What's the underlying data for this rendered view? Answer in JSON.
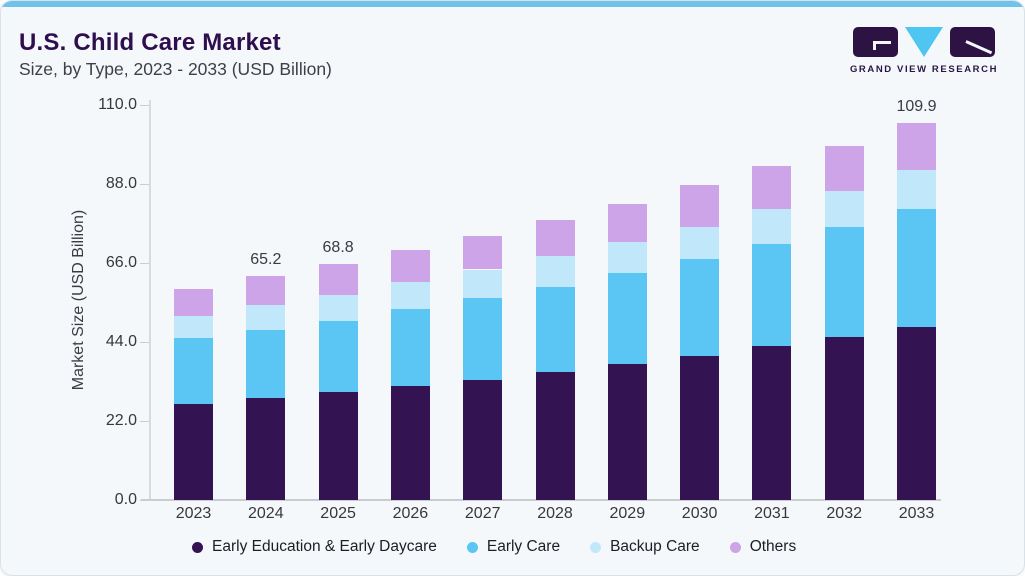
{
  "header": {
    "title": "U.S. Child Care Market",
    "subtitle": "Size, by Type, 2023 - 2033 (USD Billion)"
  },
  "logo": {
    "brand": "GRAND VIEW RESEARCH",
    "purple": "#2d1343",
    "cyan": "#4fc6f1"
  },
  "colors": {
    "background": "#f4f8fb",
    "accent_bar": "#6fc3eb",
    "title_text": "#2f0e4e",
    "axis_line": "#c9cdd2"
  },
  "chart_data": {
    "type": "bar",
    "stacked": true,
    "title": "U.S. Child Care Market Size, by Type, 2023 - 2033 (USD Billion)",
    "categories": [
      "2023",
      "2024",
      "2025",
      "2026",
      "2027",
      "2028",
      "2029",
      "2030",
      "2031",
      "2032",
      "2033"
    ],
    "series": [
      {
        "name": "Early Education & Early Daycare",
        "color": "#341352",
        "values": [
          28.0,
          29.6,
          31.5,
          33.3,
          35.0,
          37.2,
          39.6,
          42.0,
          44.8,
          47.4,
          50.5
        ]
      },
      {
        "name": "Early Care",
        "color": "#5bc6f3",
        "values": [
          19.2,
          20.1,
          20.8,
          22.4,
          23.9,
          25.0,
          26.6,
          28.2,
          29.9,
          32.1,
          34.2
        ]
      },
      {
        "name": "Backup Care",
        "color": "#c1e7fa",
        "values": [
          6.3,
          7.2,
          7.5,
          7.8,
          8.3,
          8.8,
          9.1,
          9.5,
          10.2,
          10.7,
          11.6
        ]
      },
      {
        "name": "Others",
        "color": "#cda4e8",
        "values": [
          8.0,
          8.3,
          9.0,
          9.3,
          9.7,
          10.7,
          11.0,
          12.1,
          12.4,
          13.1,
          13.6
        ]
      }
    ],
    "totals": [
      61.5,
      65.2,
      68.8,
      72.8,
      76.9,
      81.7,
      86.3,
      91.8,
      97.3,
      103.3,
      109.9
    ],
    "data_labels": {
      "2024": "65.2",
      "2025": "68.8",
      "2033": "109.9"
    },
    "ylabel": "Market Size (USD Billion)",
    "xlabel": "",
    "yticks": [
      {
        "value": 0,
        "label": "0.0"
      },
      {
        "value": 22,
        "label": "22.0"
      },
      {
        "value": 44,
        "label": "44.0"
      },
      {
        "value": 66,
        "label": "66.0"
      },
      {
        "value": 88,
        "label": "88.0"
      },
      {
        "value": 110,
        "label": "110.0"
      }
    ],
    "ylim": [
      0,
      110
    ],
    "grid": false,
    "legend_position": "bottom"
  }
}
